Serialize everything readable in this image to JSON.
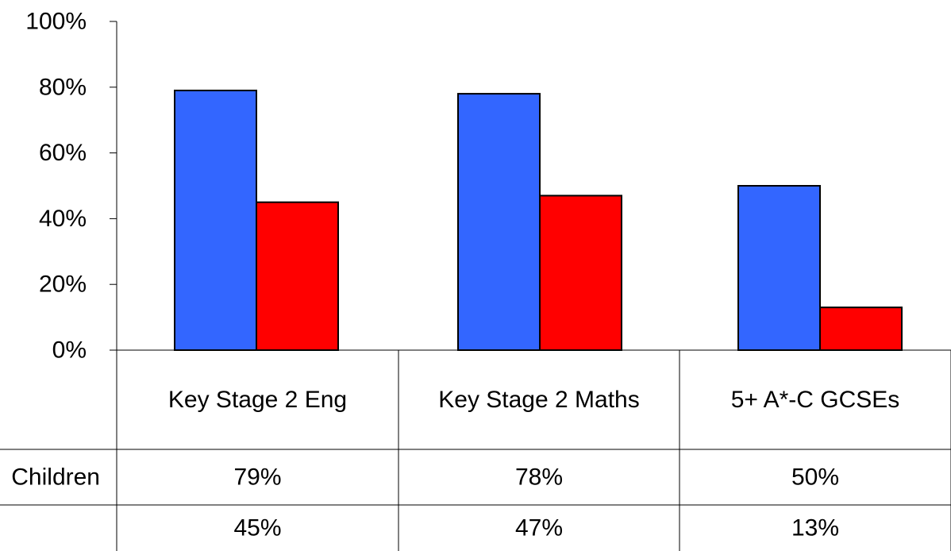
{
  "chart_data": {
    "type": "bar",
    "categories": [
      "Key Stage 2 Eng",
      "Key Stage 2 Maths",
      "5+ A*-C GCSEs"
    ],
    "series": [
      {
        "name": "Children",
        "values": [
          79,
          78,
          50
        ],
        "color": "#3366ff",
        "labels": [
          "79%",
          "78%",
          "50%"
        ]
      },
      {
        "name": "",
        "values": [
          45,
          47,
          13
        ],
        "color": "#ff0000",
        "labels": [
          "45%",
          "47%",
          "13%"
        ]
      }
    ],
    "ylim": [
      0,
      100
    ],
    "yticks": [
      "0%",
      "20%",
      "40%",
      "60%",
      "80%",
      "100%"
    ],
    "ytick_values": [
      0,
      20,
      40,
      60,
      80,
      100
    ],
    "grid": false,
    "has_data_table": true
  }
}
